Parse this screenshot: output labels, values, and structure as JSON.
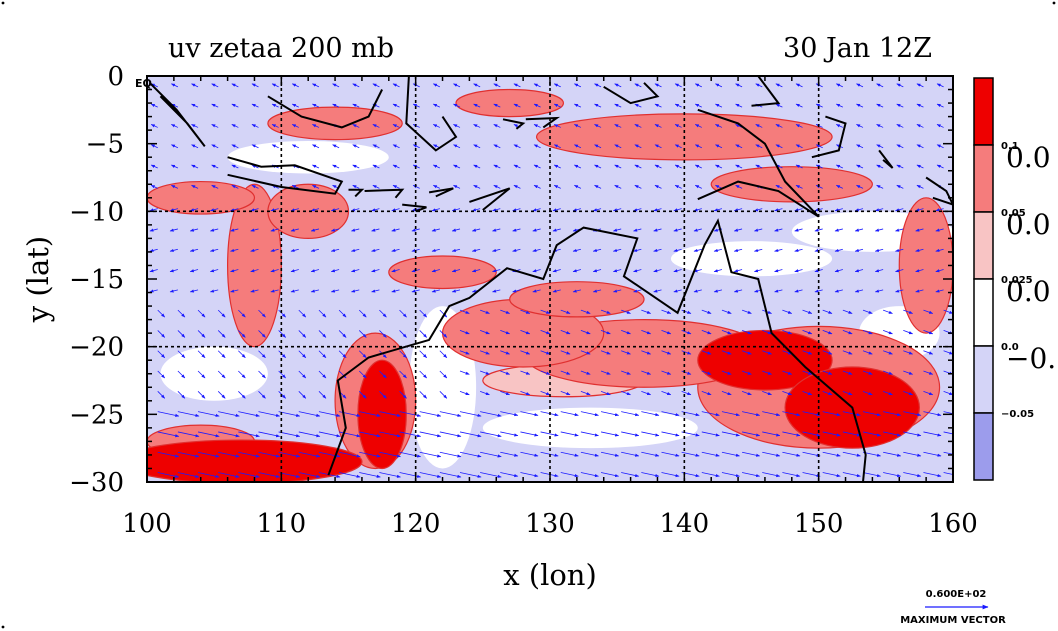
{
  "chart_data": {
    "type": "heatmap",
    "title_left": "uv zetaa 200 mb",
    "title_right": "30 Jan 12Z",
    "xlabel": "x (lon)",
    "ylabel": "y (lat)",
    "xlim": [
      100,
      160
    ],
    "ylim": [
      -30,
      0
    ],
    "x_ticks": [
      100,
      110,
      120,
      130,
      140,
      150,
      160
    ],
    "x_tick_labels": [
      "100",
      "110",
      "120",
      "130",
      "140",
      "150",
      "160"
    ],
    "y_ticks": [
      0,
      -5,
      -10,
      -15,
      -20,
      -25,
      -30
    ],
    "y_tick_labels": [
      "0",
      "−5",
      "−10",
      "−15",
      "−20",
      "−25",
      "−30"
    ],
    "gridlines_x": [
      110,
      120,
      130,
      140,
      150
    ],
    "gridlines_y": [
      -10,
      -20
    ],
    "grid": true,
    "eq_label": "EQ",
    "colorbar": {
      "levels": [
        "0.1",
        "0.05",
        "0.025",
        "0.0",
        "−0.05"
      ],
      "clipped_labels": [
        "0.0",
        "0.0",
        "0.0",
        "−0."
      ],
      "colors": [
        "#ee0000",
        "#f57c7c",
        "#f8c4c4",
        "#ffffff",
        "#d4d4f7",
        "#9c9cec"
      ]
    },
    "reference_vector": {
      "value": "0.600E+02",
      "label": "MAXIMUM VECTOR"
    },
    "colors": {
      "strong_positive": "#ee0000",
      "positive": "#f57c7c",
      "weak_positive": "#f8c4c4",
      "neutral": "#ffffff",
      "weak_negative": "#d4d4f7",
      "negative": "#9c9cec",
      "vector": "#1a1aff",
      "coast": "#000000",
      "contour": "#e03030"
    },
    "blobs": [
      {
        "lon": 107,
        "lat": -28.5,
        "rx": 9,
        "ry": 1.6,
        "level": 5
      },
      {
        "lon": 104,
        "lat": -27,
        "rx": 4,
        "ry": 1.2,
        "level": 4
      },
      {
        "lon": 117.5,
        "lat": -25,
        "rx": 1.8,
        "ry": 4,
        "level": 5
      },
      {
        "lon": 117,
        "lat": -24,
        "rx": 3,
        "ry": 5,
        "level": 4
      },
      {
        "lon": 146,
        "lat": -21,
        "rx": 5,
        "ry": 2.2,
        "level": 5
      },
      {
        "lon": 152.5,
        "lat": -24.5,
        "rx": 5,
        "ry": 3,
        "level": 5
      },
      {
        "lon": 150,
        "lat": -23,
        "rx": 9,
        "ry": 4.5,
        "level": 4
      },
      {
        "lon": 137,
        "lat": -20.5,
        "rx": 9,
        "ry": 2.5,
        "level": 4
      },
      {
        "lon": 128,
        "lat": -19,
        "rx": 6,
        "ry": 2.5,
        "level": 4
      },
      {
        "lon": 132,
        "lat": -16.5,
        "rx": 5,
        "ry": 1.3,
        "level": 4
      },
      {
        "lon": 140,
        "lat": -4.5,
        "rx": 11,
        "ry": 1.7,
        "level": 4
      },
      {
        "lon": 148,
        "lat": -8,
        "rx": 6,
        "ry": 1.3,
        "level": 4
      },
      {
        "lon": 114,
        "lat": -3.5,
        "rx": 5,
        "ry": 1.2,
        "level": 4
      },
      {
        "lon": 108,
        "lat": -14,
        "rx": 2,
        "ry": 6,
        "level": 4
      },
      {
        "lon": 112,
        "lat": -10,
        "rx": 3,
        "ry": 2,
        "level": 4
      },
      {
        "lon": 104,
        "lat": -9,
        "rx": 4,
        "ry": 1.2,
        "level": 4
      },
      {
        "lon": 158,
        "lat": -14,
        "rx": 2,
        "ry": 5,
        "level": 4
      },
      {
        "lon": 127,
        "lat": -2,
        "rx": 4,
        "ry": 1,
        "level": 4
      },
      {
        "lon": 122,
        "lat": -14.5,
        "rx": 4,
        "ry": 1.2,
        "level": 4
      },
      {
        "lon": 112,
        "lat": -6,
        "rx": 6,
        "ry": 1.2,
        "level": 1
      },
      {
        "lon": 135,
        "lat": -8.5,
        "rx": 11,
        "ry": 1.5,
        "level": 0
      },
      {
        "lon": 126,
        "lat": -12,
        "rx": 12,
        "ry": 1.5,
        "level": 0
      },
      {
        "lon": 154,
        "lat": -11.5,
        "rx": 6,
        "ry": 1.5,
        "level": 1
      },
      {
        "lon": 122,
        "lat": -23,
        "rx": 2.5,
        "ry": 6,
        "level": 1
      },
      {
        "lon": 105,
        "lat": -22,
        "rx": 4,
        "ry": 2,
        "level": 1
      },
      {
        "lon": 156,
        "lat": -19,
        "rx": 3,
        "ry": 2,
        "level": 1
      },
      {
        "lon": 133,
        "lat": -26,
        "rx": 8,
        "ry": 1.5,
        "level": 1
      },
      {
        "lon": 112,
        "lat": -17,
        "rx": 2,
        "ry": 4,
        "level": 0
      },
      {
        "lon": 105,
        "lat": -3,
        "rx": 4,
        "ry": 2.5,
        "level": 0
      },
      {
        "lon": 145,
        "lat": -13.5,
        "rx": 6,
        "ry": 1.3,
        "level": 1
      },
      {
        "lon": 131,
        "lat": -22.5,
        "rx": 6,
        "ry": 1.2,
        "level": 2
      }
    ],
    "coastlines": [
      [
        [
          113.5,
          -29.5
        ],
        [
          114.8,
          -26
        ],
        [
          114.2,
          -22.5
        ],
        [
          116.5,
          -20.8
        ],
        [
          121,
          -19.5
        ],
        [
          122.5,
          -17
        ],
        [
          124,
          -16.4
        ],
        [
          126.8,
          -14.2
        ],
        [
          129.5,
          -15
        ],
        [
          130.5,
          -12.5
        ],
        [
          132.5,
          -11.2
        ],
        [
          136.5,
          -12
        ],
        [
          135.5,
          -14.8
        ],
        [
          139.5,
          -17.5
        ],
        [
          141.5,
          -12.5
        ],
        [
          142.5,
          -10.7
        ],
        [
          143.5,
          -14.5
        ],
        [
          145.5,
          -15
        ],
        [
          146.5,
          -19
        ],
        [
          149,
          -21.5
        ],
        [
          152.5,
          -24.5
        ],
        [
          153.5,
          -28
        ],
        [
          153.3,
          -30
        ]
      ],
      [
        [
          141,
          -2.5
        ],
        [
          144,
          -3.5
        ],
        [
          146,
          -5
        ],
        [
          147.5,
          -7.8
        ],
        [
          150,
          -10.4
        ],
        [
          147,
          -8.5
        ],
        [
          144,
          -7.8
        ],
        [
          141,
          -9.1
        ]
      ],
      [
        [
          150.5,
          -3
        ],
        [
          152,
          -3.5
        ],
        [
          151.5,
          -5.5
        ],
        [
          149.5,
          -6
        ]
      ],
      [
        [
          106,
          -6
        ],
        [
          108.5,
          -6.7
        ],
        [
          111,
          -6.6
        ],
        [
          114.5,
          -7.8
        ],
        [
          114,
          -8.7
        ],
        [
          110,
          -8.2
        ],
        [
          106,
          -7.3
        ]
      ],
      [
        [
          115,
          -8.4
        ],
        [
          116,
          -8.4
        ],
        [
          115.5,
          -8.9
        ]
      ],
      [
        [
          116.2,
          -8.5
        ],
        [
          119,
          -8.4
        ],
        [
          118.5,
          -9
        ]
      ],
      [
        [
          119,
          -9.5
        ],
        [
          120.8,
          -9.7
        ],
        [
          120,
          -10
        ]
      ],
      [
        [
          121,
          -8.6
        ],
        [
          122.8,
          -8.3
        ],
        [
          121.5,
          -8.9
        ]
      ],
      [
        [
          124,
          -9.3
        ],
        [
          127,
          -8.3
        ],
        [
          125,
          -9.9
        ]
      ],
      [
        [
          100.2,
          -0.5
        ],
        [
          102.2,
          -2.5
        ],
        [
          104.3,
          -5.2
        ],
        [
          103,
          -3.5
        ],
        [
          101,
          -1.5
        ]
      ],
      [
        [
          109,
          -1.5
        ],
        [
          111.5,
          -3
        ],
        [
          114.5,
          -3.8
        ],
        [
          116.5,
          -3
        ],
        [
          117.5,
          -1
        ]
      ],
      [
        [
          119.5,
          0
        ],
        [
          119.3,
          -3.5
        ],
        [
          121.5,
          -5.5
        ],
        [
          123,
          -4.5
        ],
        [
          122,
          -3
        ]
      ],
      [
        [
          126.5,
          -3.2
        ],
        [
          128,
          -3.5
        ],
        [
          127.5,
          -3.9
        ]
      ],
      [
        [
          128.2,
          -3.2
        ],
        [
          130.5,
          -3.1
        ],
        [
          129.5,
          -3.8
        ]
      ],
      [
        [
          134,
          -0.8
        ],
        [
          136,
          -2
        ],
        [
          138,
          -1.5
        ],
        [
          137,
          -0.5
        ]
      ],
      [
        [
          145.5,
          0
        ],
        [
          147,
          -2
        ],
        [
          145,
          -2.2
        ]
      ],
      [
        [
          154.5,
          -5.5
        ],
        [
          155.5,
          -6.8
        ],
        [
          154.8,
          -6.2
        ]
      ],
      [
        [
          158,
          -7.5
        ],
        [
          159.5,
          -8.5
        ],
        [
          160,
          -9.5
        ],
        [
          158.5,
          -9
        ]
      ]
    ]
  }
}
